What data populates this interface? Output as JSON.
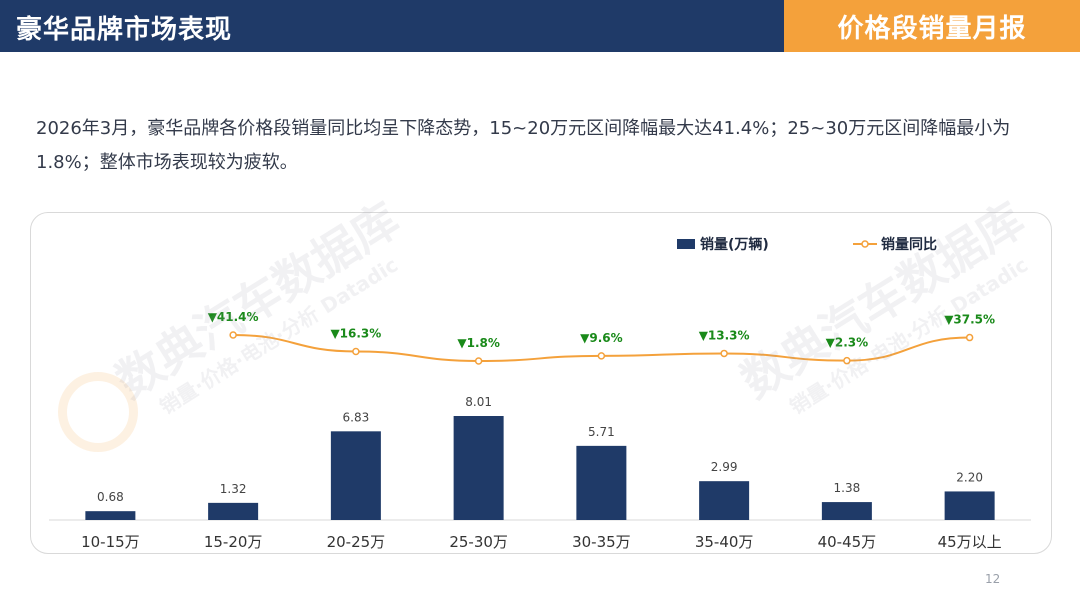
{
  "header": {
    "title": "豪华品牌市场表现",
    "badge": "价格段销量月报"
  },
  "summary": {
    "text": "2026年3月，豪华品牌各价格段销量同比均呈下降态势，15~20万元区间降幅最大达41.4%；25~30万元区间降幅最小为1.8%；整体市场表现较为疲软。"
  },
  "watermark": {
    "text_1": "数典汽车数据库",
    "text_2": "销量·价格·电池·分析 Datadic"
  },
  "page_number": "12",
  "colors": {
    "header_bg": "#1f3a68",
    "badge_bg": "#f4a13b",
    "bar": "#1f3a68",
    "line": "#f4a13b",
    "yoy_text": "#1a8a1a"
  },
  "chart_data": {
    "type": "bar",
    "categories": [
      "10-15万",
      "15-20万",
      "20-25万",
      "25-30万",
      "30-35万",
      "35-40万",
      "40-45万",
      "45万以上"
    ],
    "series": [
      {
        "name": "销量(万辆)",
        "type": "bar",
        "values": [
          0.68,
          1.32,
          6.83,
          8.01,
          5.71,
          2.99,
          1.38,
          2.2
        ],
        "labels": [
          "0.68",
          "1.32",
          "6.83",
          "8.01",
          "5.71",
          "2.99",
          "1.38",
          "2.20"
        ]
      },
      {
        "name": "销量同比",
        "type": "line",
        "values": [
          null,
          -41.4,
          -16.3,
          -1.8,
          -9.6,
          -13.3,
          -2.3,
          -37.5
        ],
        "labels": [
          "",
          "▼41.4%",
          "▼16.3%",
          "▼1.8%",
          "▼9.6%",
          "▼13.3%",
          "▼2.3%",
          "▼37.5%"
        ]
      }
    ],
    "legend": {
      "position": "top-right"
    },
    "grid": false
  }
}
